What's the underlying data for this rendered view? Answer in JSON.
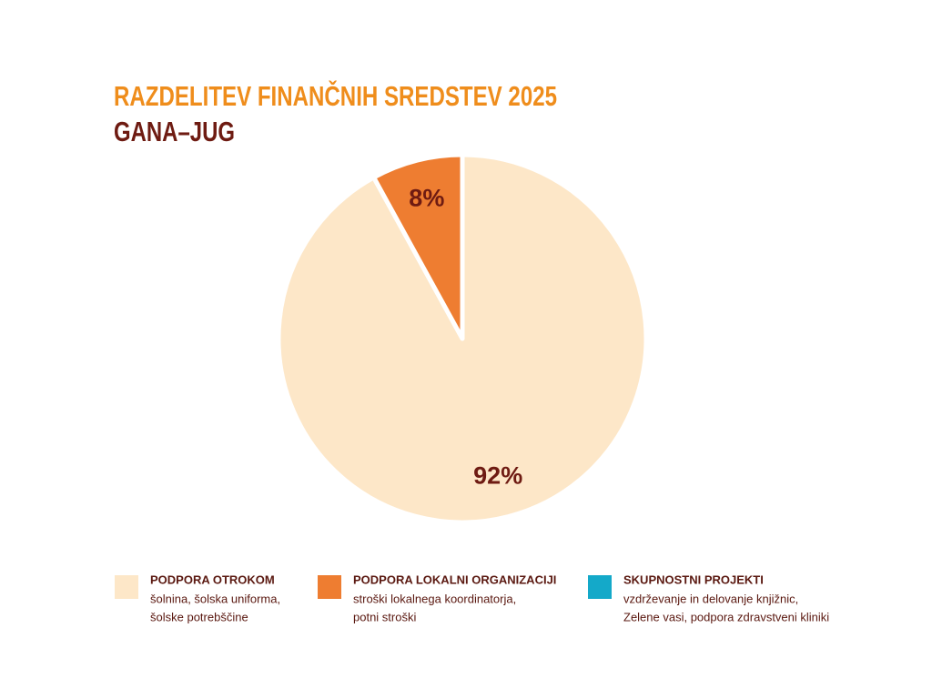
{
  "chart_data": {
    "type": "pie",
    "title": "RAZDELITEV FINANČNIH SREDSTEV 2025",
    "subtitle": "GANA–JUG",
    "categories": [
      "PODPORA OTROKOM",
      "PODPORA LOKALNI ORGANIZACIJI",
      "SKUPNOSTNI PROJEKTI"
    ],
    "descriptions": [
      [
        "šolnina, šolska uniforma,",
        "šolske potrebščine"
      ],
      [
        "stroški lokalnega koordinatorja,",
        "potni stroški"
      ],
      [
        "vzdrževanje in delovanje knjižnic,",
        "Zelene vasi, podpora zdravstveni kliniki"
      ]
    ],
    "values": [
      92,
      8,
      0
    ],
    "value_labels": [
      "92%",
      "8%",
      null
    ],
    "colors": [
      "#fde7c8",
      "#ee7d31",
      "#14a9c9"
    ],
    "legend": "bottom"
  }
}
